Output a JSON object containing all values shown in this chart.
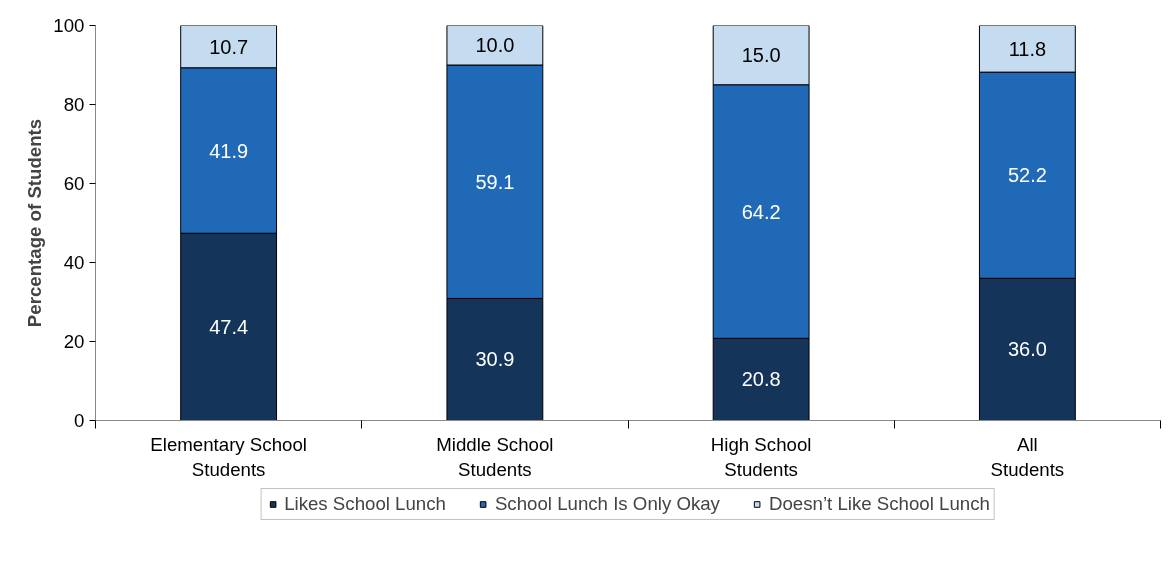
{
  "chart_data": {
    "type": "bar",
    "stacked": true,
    "ylabel": "Percentage of Students",
    "categories": [
      "Elementary School\nStudents",
      "Middle School\nStudents",
      "High School\nStudents",
      "All\nStudents"
    ],
    "series": [
      {
        "name": "Likes School Lunch",
        "color": "#14345a",
        "values": [
          47.4,
          30.9,
          20.8,
          36.0
        ],
        "value_labels": [
          "47.4",
          "30.9",
          "20.8",
          "36.0"
        ]
      },
      {
        "name": "School Lunch Is Only Okay",
        "color": "#1f69b6",
        "values": [
          41.9,
          59.1,
          64.2,
          52.2
        ],
        "value_labels": [
          "41.9",
          "59.1",
          "64.2",
          "52.2"
        ]
      },
      {
        "name": "Doesn’t Like School Lunch",
        "color": "#c5dcf0",
        "values": [
          10.7,
          10.0,
          15.0,
          11.8
        ],
        "value_labels": [
          "10.7",
          "10.0",
          "15.0",
          "11.8"
        ]
      }
    ],
    "ylim": [
      0,
      100
    ],
    "yticks": [
      0,
      20,
      40,
      60,
      80,
      100
    ],
    "legend": "bottom"
  }
}
